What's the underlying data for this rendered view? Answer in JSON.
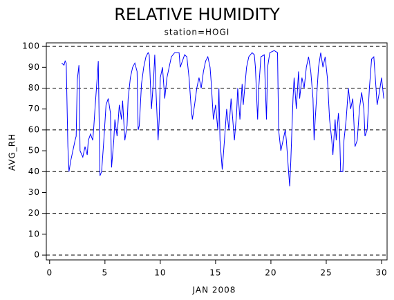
{
  "chart_data": {
    "type": "line",
    "title": "RELATIVE HUMIDITY",
    "subtitle": "station=HOGI",
    "xlabel": "JAN 2008",
    "ylabel": "AVG_RH",
    "color": "#0000ff",
    "grid": true,
    "xlim": [
      -0.3,
      30.5
    ],
    "ylim": [
      -2.3,
      101.7
    ],
    "xticks": [
      0,
      5,
      10,
      15,
      20,
      25,
      30
    ],
    "yticks": [
      0,
      10,
      20,
      30,
      40,
      50,
      60,
      70,
      80,
      90,
      100
    ],
    "gridlines": [
      0,
      20,
      40,
      60,
      80,
      100
    ],
    "x": [
      1.1,
      1.3,
      1.4,
      1.5,
      1.65,
      1.75,
      1.9,
      2.1,
      2.3,
      2.4,
      2.5,
      2.65,
      2.75,
      3.0,
      3.2,
      3.4,
      3.5,
      3.7,
      3.9,
      4.0,
      4.1,
      4.3,
      4.4,
      4.55,
      4.7,
      4.9,
      5.1,
      5.3,
      5.5,
      5.6,
      5.8,
      5.9,
      6.1,
      6.3,
      6.5,
      6.6,
      6.8,
      7.0,
      7.1,
      7.3,
      7.5,
      7.7,
      7.9,
      8.0,
      8.1,
      8.3,
      8.5,
      8.7,
      8.9,
      9.0,
      9.2,
      9.4,
      9.5,
      9.6,
      9.8,
      9.9,
      10.0,
      10.2,
      10.4,
      10.6,
      10.8,
      11.0,
      11.3,
      11.7,
      11.8,
      12.0,
      12.2,
      12.4,
      12.6,
      12.8,
      12.9,
      13.1,
      13.3,
      13.5,
      13.7,
      13.9,
      14.1,
      14.3,
      14.5,
      14.6,
      14.8,
      15.0,
      15.2,
      15.3,
      15.4,
      15.6,
      15.8,
      16.0,
      16.2,
      16.4,
      16.7,
      16.9,
      17.0,
      17.2,
      17.4,
      17.5,
      17.8,
      18.0,
      18.3,
      18.5,
      18.6,
      18.8,
      18.9,
      19.1,
      19.4,
      19.5,
      19.6,
      19.7,
      19.9,
      20.3,
      20.6,
      20.7,
      20.9,
      21.1,
      21.3,
      21.4,
      21.6,
      21.7,
      21.8,
      22.0,
      22.1,
      22.3,
      22.5,
      22.6,
      22.8,
      23.0,
      23.2,
      23.4,
      23.6,
      23.8,
      23.9,
      24.0,
      24.3,
      24.5,
      24.7,
      24.9,
      25.1,
      25.3,
      25.5,
      25.6,
      25.8,
      25.9,
      26.1,
      26.2,
      26.3,
      26.5,
      26.6,
      26.8,
      27.0,
      27.2,
      27.4,
      27.6,
      27.8,
      28.0,
      28.2,
      28.4,
      28.5,
      28.7,
      28.9,
      29.1,
      29.3,
      29.5,
      29.6,
      29.8,
      30.0,
      30.2
    ],
    "values": [
      92,
      91,
      93,
      92,
      52,
      40,
      45,
      50,
      55,
      57,
      84,
      91,
      50,
      47,
      52,
      48,
      55,
      58,
      55,
      62,
      70,
      85,
      93,
      38,
      40,
      55,
      72,
      75,
      68,
      42,
      55,
      65,
      57,
      72,
      65,
      74,
      55,
      62,
      75,
      85,
      90,
      92,
      88,
      60,
      62,
      82,
      90,
      95,
      97,
      96,
      70,
      85,
      96,
      80,
      55,
      65,
      85,
      90,
      75,
      85,
      90,
      95,
      97,
      97,
      90,
      93,
      96,
      95,
      85,
      70,
      65,
      72,
      80,
      85,
      80,
      88,
      93,
      95,
      90,
      83,
      65,
      72,
      60,
      80,
      55,
      41,
      55,
      70,
      60,
      75,
      55,
      68,
      80,
      65,
      82,
      72,
      90,
      95,
      97,
      96,
      90,
      65,
      80,
      95,
      96,
      80,
      65,
      90,
      97,
      98,
      97,
      60,
      50,
      55,
      60,
      55,
      40,
      33,
      45,
      75,
      85,
      70,
      88,
      75,
      85,
      80,
      90,
      95,
      88,
      75,
      55,
      65,
      90,
      97,
      90,
      95,
      85,
      65,
      55,
      48,
      65,
      55,
      68,
      60,
      40,
      40,
      55,
      65,
      80,
      70,
      75,
      52,
      55,
      70,
      78,
      70,
      57,
      60,
      80,
      94,
      95,
      80,
      72,
      78,
      85,
      75
    ]
  }
}
